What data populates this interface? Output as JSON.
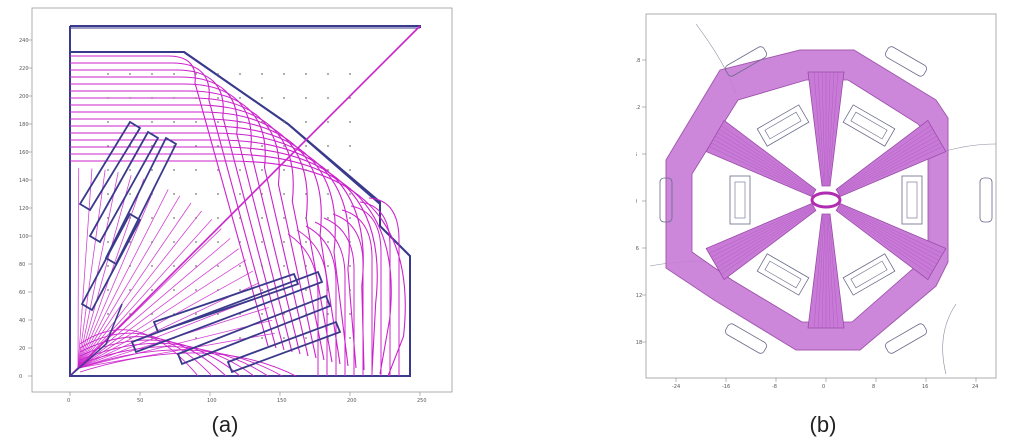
{
  "panels": [
    {
      "caption": "(a)",
      "x_ticks": [
        "0",
        "50",
        "100",
        "150",
        "200",
        "250"
      ],
      "y_ticks": [
        "0",
        "20",
        "40",
        "60",
        "80",
        "100",
        "120",
        "140",
        "160",
        "180",
        "200",
        "220",
        "240"
      ]
    },
    {
      "caption": "(b)",
      "x_ticks": [
        "-24",
        "-16",
        "-8",
        "0",
        "8",
        "16",
        "24"
      ],
      "y_ticks": [
        "18",
        "12",
        "6",
        "0",
        "-6",
        "-12",
        "-18"
      ]
    }
  ],
  "colors": {
    "outline": "#3a3a8c",
    "field_lines": "#cc22cc",
    "flux_fill": "#c77bd6",
    "contour": "#6a5a8a"
  }
}
